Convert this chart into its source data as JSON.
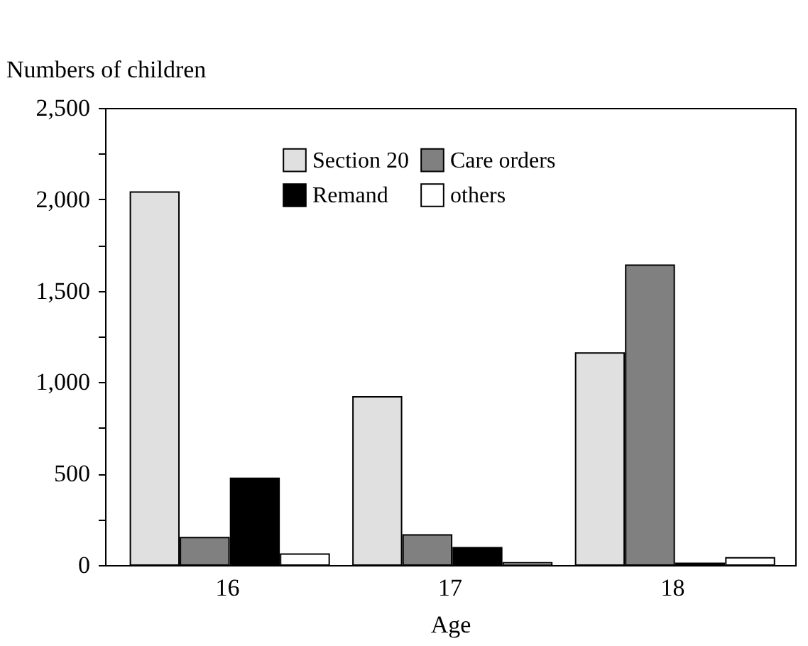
{
  "chart_data": {
    "type": "bar",
    "xlabel": "Age",
    "ylabel": "Numbers of children",
    "categories": [
      "16",
      "17",
      "18"
    ],
    "series": [
      {
        "name": "Section 20",
        "color": "#e0e0e0",
        "values": [
          2040,
          920,
          1160
        ]
      },
      {
        "name": "Care orders",
        "color": "#808080",
        "values": [
          150,
          165,
          1640
        ]
      },
      {
        "name": "Remand",
        "color": "#000000",
        "values": [
          475,
          95,
          10
        ]
      },
      {
        "name": "others",
        "color": "#ffffff",
        "values": [
          60,
          13,
          40
        ]
      }
    ],
    "ylim": [
      0,
      2500
    ],
    "yticks": [
      0,
      {
        "value": 250,
        "label": null
      },
      500,
      {
        "value": 750,
        "label": null
      },
      {
        "value": 1000,
        "label": "1,000"
      },
      {
        "value": 1250,
        "label": null
      },
      {
        "value": 1500,
        "label": "1,500"
      },
      {
        "value": 1750,
        "label": null
      },
      {
        "value": 2000,
        "label": "2,000"
      },
      {
        "value": 2250,
        "label": null
      },
      {
        "value": 2500,
        "label": "2,500"
      }
    ],
    "grid": false,
    "legend": "top"
  }
}
